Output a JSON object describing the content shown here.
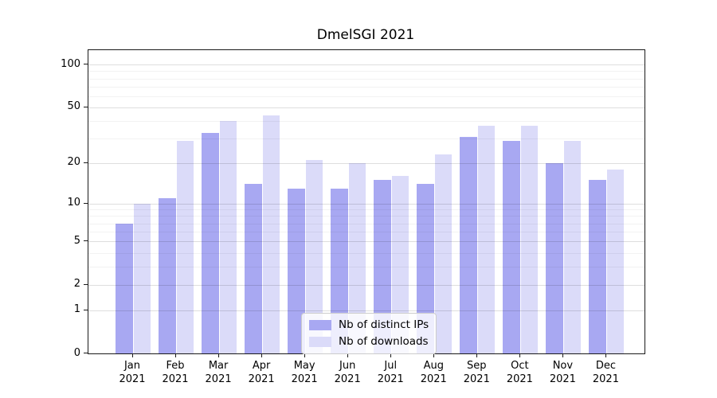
{
  "chart_data": {
    "type": "bar",
    "title": "DmelSGI 2021",
    "categories": [
      "Jan",
      "Feb",
      "Mar",
      "Apr",
      "May",
      "Jun",
      "Jul",
      "Aug",
      "Sep",
      "Oct",
      "Nov",
      "Dec"
    ],
    "category_year": "2021",
    "series": [
      {
        "name": "Nb of distinct IPs",
        "color": "#a8a8f2",
        "values": [
          7,
          11,
          33,
          14,
          13,
          13,
          15,
          14,
          31,
          29,
          20,
          15
        ]
      },
      {
        "name": "Nb of downloads",
        "color": "#dbdbf9",
        "values": [
          10,
          29,
          40,
          44,
          21,
          20,
          16,
          23,
          37,
          37,
          29,
          18
        ]
      }
    ],
    "yscale": "log1p",
    "ylim": [
      0,
      127
    ],
    "y_tick_labels": [
      "100",
      "50",
      "20",
      "10",
      "5",
      "2",
      "1",
      "0"
    ],
    "y_major_gridlines": [
      1,
      2,
      5,
      10,
      20,
      50,
      100
    ],
    "y_minor_gridlines": [
      3,
      4,
      6,
      7,
      8,
      9,
      30,
      40,
      60,
      70,
      80,
      90
    ],
    "grid": true,
    "legend_position": "lower center",
    "axis_color": "#1a1a1a",
    "text_color": "#000000"
  }
}
